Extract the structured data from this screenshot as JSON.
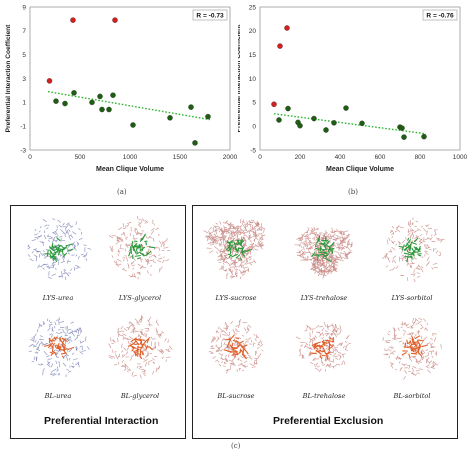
{
  "chart_data": [
    {
      "type": "scatter",
      "panel_label": "(a)",
      "xlabel": "Mean Clique Volume",
      "ylabel": "Preferential Interaction Coefficient",
      "annotation": "R = -0.73",
      "xlim": [
        0,
        2000
      ],
      "ylim": [
        -3,
        9
      ],
      "x_ticks": [
        "0",
        "500",
        "1000",
        "1500",
        "2000"
      ],
      "y_ticks": [
        "9",
        "7",
        "5",
        "3",
        "1",
        "-1",
        "-3"
      ],
      "trendline": {
        "x": [
          180,
          1800
        ],
        "y": [
          1.9,
          -0.45
        ],
        "style": "dotted",
        "color": "#2db52d"
      },
      "series": [
        {
          "color": "#d21f1f",
          "points": [
            [
              195,
              2.8
            ],
            [
              430,
              7.9
            ],
            [
              850,
              7.9
            ]
          ]
        },
        {
          "color": "#1f5c14",
          "points": [
            [
              260,
              1.1
            ],
            [
              350,
              0.9
            ],
            [
              440,
              1.8
            ],
            [
              620,
              1.0
            ],
            [
              700,
              1.5
            ],
            [
              720,
              0.4
            ],
            [
              790,
              0.4
            ],
            [
              830,
              1.6
            ],
            [
              1030,
              -0.9
            ],
            [
              1400,
              -0.3
            ],
            [
              1610,
              0.6
            ],
            [
              1650,
              -2.4
            ],
            [
              1780,
              -0.2
            ]
          ]
        }
      ]
    },
    {
      "type": "scatter",
      "panel_label": "(b)",
      "xlabel": "Mean Clique Volume",
      "ylabel": "Preferential Interaction Coefficient",
      "annotation": "R = -0.76",
      "xlim": [
        0,
        1000
      ],
      "ylim": [
        -5,
        25
      ],
      "x_ticks": [
        "0",
        "200",
        "400",
        "600",
        "800",
        "1000"
      ],
      "y_ticks": [
        "25",
        "20",
        "15",
        "10",
        "5",
        "0",
        "-5"
      ],
      "trendline": {
        "x": [
          70,
          830
        ],
        "y": [
          2.6,
          -1.6
        ],
        "style": "dotted",
        "color": "#2db52d"
      },
      "series": [
        {
          "color": "#d21f1f",
          "points": [
            [
              70,
              4.6
            ],
            [
              100,
              16.8
            ],
            [
              135,
              20.6
            ]
          ]
        },
        {
          "color": "#1f5c14",
          "points": [
            [
              95,
              1.3
            ],
            [
              140,
              3.7
            ],
            [
              190,
              0.8
            ],
            [
              200,
              0.1
            ],
            [
              270,
              1.6
            ],
            [
              330,
              -0.8
            ],
            [
              370,
              0.7
            ],
            [
              430,
              3.8
            ],
            [
              510,
              0.6
            ],
            [
              700,
              -0.2
            ],
            [
              710,
              -0.4
            ],
            [
              720,
              -2.3
            ],
            [
              820,
              -2.2
            ]
          ]
        }
      ]
    }
  ],
  "figure_c": {
    "panel_label": "(c)",
    "left_panel": {
      "title": "Preferential Interaction",
      "captions": [
        "LYS-urea",
        "LYS-glycerol",
        "BL-urea",
        "BL-glycerol"
      ]
    },
    "right_panel": {
      "title": "Preferential Exclusion",
      "captions": [
        "LYS-sucrose",
        "LYS-trehalose",
        "LYS-sorbitol",
        "BL-sucrose",
        "BL-trehalose",
        "BL-sorbitol"
      ]
    },
    "colors": {
      "urea_shell": "#7f86b8",
      "polyol_shell": "#c98a86",
      "lys_core": "#2a9a3a",
      "bl_core": "#e0602a"
    }
  }
}
